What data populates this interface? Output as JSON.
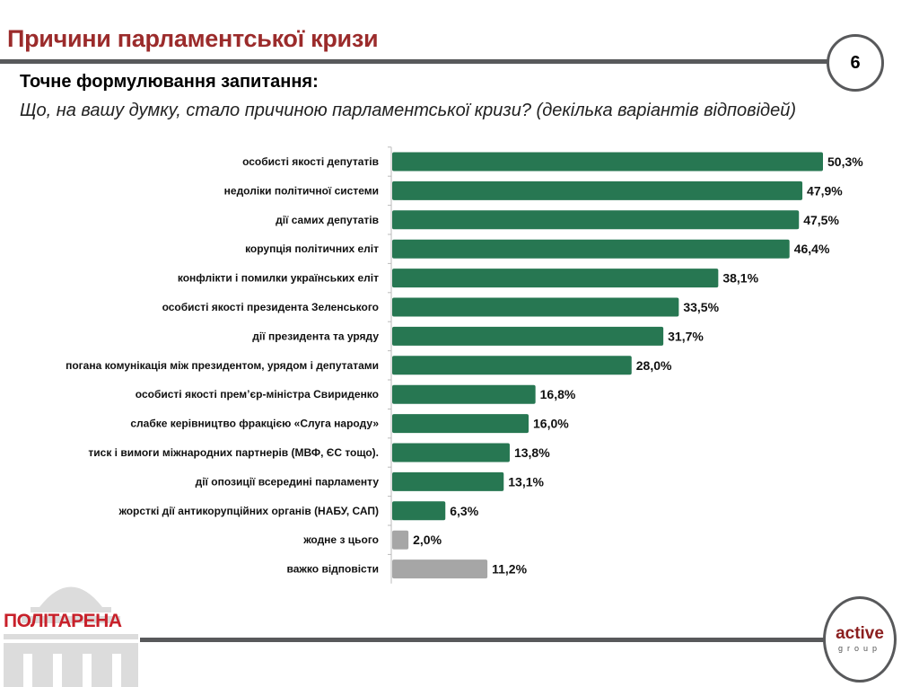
{
  "header": {
    "title": "Причини парламентської кризи",
    "page_number": "6"
  },
  "question": {
    "label": "Точне формулювання запитання:",
    "text": "Що, на вашу думку, стало причиною парламентської кризи? (декілька варіантів відповідей)"
  },
  "logos": {
    "left": "ПОЛІТАРЕНА",
    "right_main": "active",
    "right_sub": "group"
  },
  "colors": {
    "primary": "#277752",
    "neutral": "#a6a6a6",
    "title": "#9b2b2b"
  },
  "chart_data": {
    "type": "bar",
    "orientation": "horizontal",
    "xlim": [
      0,
      50.3
    ],
    "grid": false,
    "categories": [
      "особисті якості депутатів",
      "недоліки політичної системи",
      "дії самих депутатів",
      "корупція політичних еліт",
      "конфлікти і помилки українських еліт",
      "особисті якості президента Зеленського",
      "дії президента та уряду",
      "погана комунікація між президентом, урядом і депутатами",
      "особисті якості прем’єр-міністра Свириденко",
      "слабке керівництво фракцією «Слуга народу»",
      "тиск і вимоги міжнародних партнерів (МВФ, ЄС тощо).",
      "дії опозиції всередині парламенту",
      "жорсткі дії антикорупційних органів (НАБУ, САП)",
      "жодне з цього",
      "важко відповісти"
    ],
    "values": [
      50.3,
      47.9,
      47.5,
      46.4,
      38.1,
      33.5,
      31.7,
      28.0,
      16.8,
      16.0,
      13.8,
      13.1,
      6.3,
      2.0,
      11.2
    ],
    "labels": [
      "50,3%",
      "47,9%",
      "47,5%",
      "46,4%",
      "38,1%",
      "33,5%",
      "31,7%",
      "28,0%",
      "16,8%",
      "16,0%",
      "13,8%",
      "13,1%",
      "6,3%",
      "2,0%",
      "11,2%"
    ],
    "bar_colors": [
      "#277752",
      "#277752",
      "#277752",
      "#277752",
      "#277752",
      "#277752",
      "#277752",
      "#277752",
      "#277752",
      "#277752",
      "#277752",
      "#277752",
      "#277752",
      "#a6a6a6",
      "#a6a6a6"
    ]
  }
}
